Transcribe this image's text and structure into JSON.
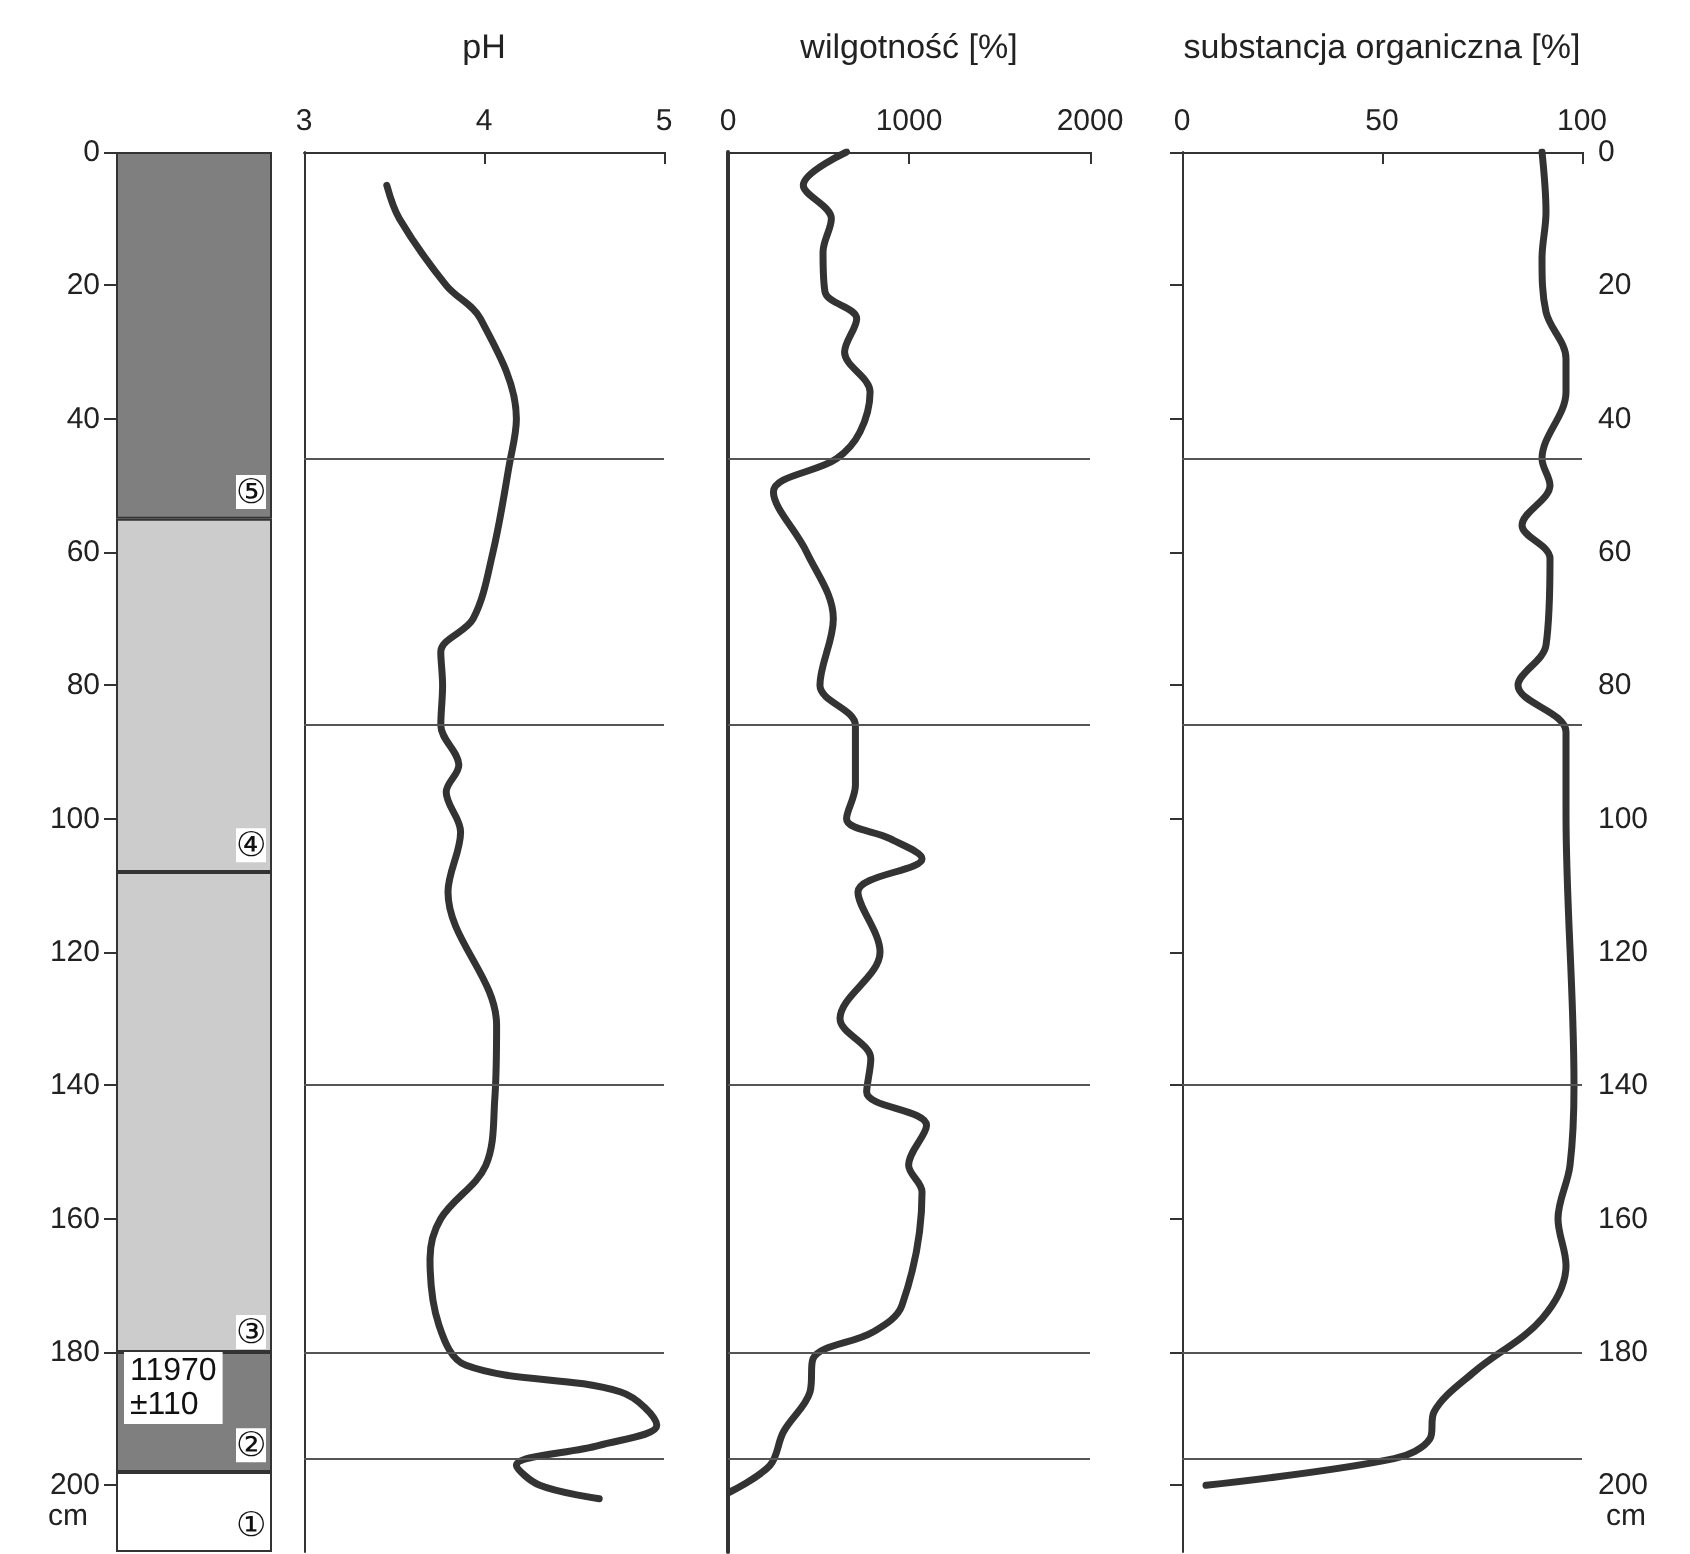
{
  "chart_data": [
    {
      "type": "bar",
      "stacked": true,
      "categories": [
        null
      ],
      "ylabel": "cm",
      "ylim": [
        210,
        0
      ],
      "yticks": [
        0,
        20,
        40,
        60,
        80,
        100,
        120,
        140,
        160,
        180,
        200
      ],
      "tick_labels": "y",
      "series": [
        {
          "color": "#7f7f7f",
          "values": [
            55
          ]
        },
        {
          "color": "#cccccc",
          "values": [
            53
          ]
        },
        {
          "color": "#cccccc",
          "values": [
            72
          ]
        },
        {
          "color": "#7f7f7f",
          "values": [
            18
          ]
        },
        {
          "color": "#ffffff",
          "values": [
            12
          ]
        }
      ],
      "annotations": [
        {
          "text": "⑤",
          "y": 51
        },
        {
          "text": "④",
          "y": 104
        },
        {
          "text": "③",
          "y": 177
        },
        "11970\n±110",
        {
          "text": "②",
          "y": 194
        },
        {
          "text": "①",
          "y": 206
        }
      ]
    },
    {
      "type": "line",
      "xlabel": "pH",
      "xlim": [
        3,
        5
      ],
      "xticks": [
        3,
        4,
        5
      ],
      "ylim": [
        210,
        0
      ],
      "yticks": [
        0,
        20,
        40,
        60,
        80,
        100,
        120,
        140,
        160,
        180,
        200
      ],
      "tick_labels": "x",
      "series": [
        {
          "color": "#333333",
          "x": [
            3.46,
            3.53,
            3.79,
            3.98,
            4.18,
            4.14,
            4.05,
            3.94,
            3.76,
            3.77,
            3.76,
            3.86,
            3.79,
            3.87,
            3.8,
            4.07,
            4.06,
            4.01,
            3.76,
            3.7,
            3.75,
            3.9,
            4.76,
            4.96,
            4.64,
            4.18,
            4.31,
            4.64
          ],
          "values": [
            5,
            10,
            20,
            25,
            40,
            47,
            60,
            70,
            75,
            80,
            86,
            92,
            96,
            102,
            111,
            131,
            142,
            152,
            160,
            166,
            176,
            182,
            186,
            191,
            194,
            197,
            200,
            202
          ]
        }
      ],
      "ref_lines": [
        {
          "axis": "y",
          "value": 46
        },
        {
          "axis": "y",
          "value": 86
        },
        {
          "axis": "y",
          "value": 140
        },
        {
          "axis": "y",
          "value": 180
        },
        {
          "axis": "y",
          "value": 196
        }
      ]
    },
    {
      "type": "line",
      "xlabel": "wilgotność [%]",
      "xlim": [
        0,
        2000
      ],
      "xticks": [
        0,
        1000,
        2000
      ],
      "ylim": [
        210,
        0
      ],
      "yticks": [
        0,
        20,
        40,
        60,
        80,
        100,
        120,
        140,
        160,
        180,
        200
      ],
      "tick_labels": "x",
      "series": [
        {
          "color": "#333333",
          "x": [
            655,
            416,
            571,
            525,
            536,
            711,
            644,
            785,
            729,
            600,
            251,
            434,
            582,
            508,
            704,
            704,
            655,
            895,
            1072,
            718,
            840,
            619,
            789,
            766,
            1097,
            998,
            1072,
            961,
            801,
            470,
            453,
            306,
            232,
            10
          ],
          "values": [
            0,
            5,
            10,
            15,
            21,
            25,
            30,
            36,
            42,
            46,
            51,
            60,
            70,
            80,
            86,
            95,
            100,
            103,
            106,
            111,
            120,
            130,
            136,
            141,
            146,
            152,
            156,
            173,
            177,
            181,
            186,
            192,
            197,
            201
          ]
        }
      ],
      "ref_lines": [
        {
          "axis": "y",
          "value": 46
        },
        {
          "axis": "y",
          "value": 86
        },
        {
          "axis": "y",
          "value": 140
        },
        {
          "axis": "y",
          "value": 180
        },
        {
          "axis": "y",
          "value": 196
        }
      ]
    },
    {
      "type": "line",
      "xlabel": "substancja organiczna [%]",
      "xlim": [
        0,
        100
      ],
      "xticks": [
        0,
        50,
        100
      ],
      "y2label": "cm",
      "y2lim": [
        210,
        0
      ],
      "y2ticks": [
        0,
        20,
        40,
        60,
        80,
        100,
        120,
        140,
        160,
        180,
        200
      ],
      "series": [
        {
          "color": "#333333",
          "axis": "y2",
          "x": [
            90,
            91,
            90,
            91,
            96,
            96,
            90,
            92,
            85,
            92,
            91,
            84,
            96,
            96,
            98,
            97,
            94,
            96,
            90,
            73,
            63,
            62,
            53,
            6
          ],
          "values": [
            0,
            9,
            16,
            24,
            31,
            36,
            46,
            50,
            56,
            61,
            74,
            80,
            87,
            99,
            140,
            152,
            160,
            167,
            175,
            183,
            189,
            193,
            196,
            200
          ]
        }
      ],
      "ref_lines": [
        {
          "axis": "y2",
          "value": 46
        },
        {
          "axis": "y2",
          "value": 86
        },
        {
          "axis": "y2",
          "value": 140
        },
        {
          "axis": "y2",
          "value": 180
        },
        {
          "axis": "y2",
          "value": 196
        }
      ]
    }
  ]
}
